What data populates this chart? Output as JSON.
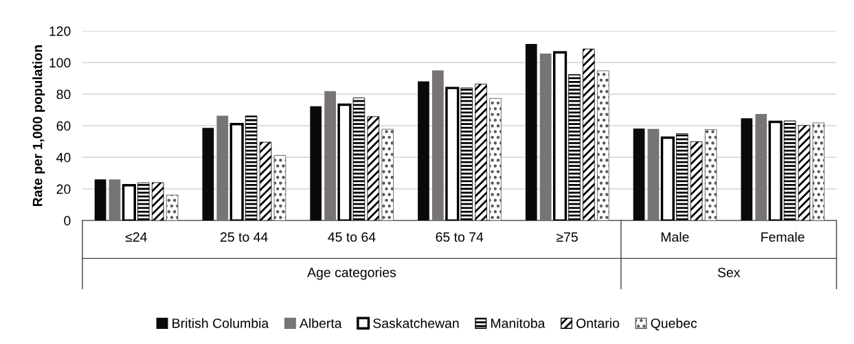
{
  "chart_data": {
    "type": "bar",
    "ylabel": "Rate per 1,000 population",
    "categories": [
      "≤24",
      "25 to 44",
      "45 to 64",
      "65 to 74",
      "≥75",
      "Male",
      "Female"
    ],
    "annotations": [
      "Age categories",
      "Sex"
    ],
    "series": [
      {
        "name": "British Columbia",
        "color": "#0a0a0a",
        "values": [
          26,
          58.6,
          72.3,
          88.1,
          111.8,
          58.2,
          64.7
        ]
      },
      {
        "name": "Alberta",
        "color": "#787374",
        "values": [
          26,
          66.4,
          81.9,
          95,
          105.7,
          58,
          67.4
        ]
      },
      {
        "name": "Saskatchewan",
        "color": "#ffffff",
        "values": [
          22.3,
          61,
          73.3,
          83.9,
          106.5,
          52.4,
          62.4
        ]
      },
      {
        "name": "Manitoba",
        "color": "#000000",
        "values": [
          23.9,
          66.2,
          77.6,
          84,
          92.4,
          55,
          63.1
        ]
      },
      {
        "name": "Ontario",
        "color": "#000000",
        "values": [
          24,
          49.6,
          65.8,
          86.4,
          108.6,
          49.9,
          60.2
        ]
      },
      {
        "name": "Quebec",
        "color": "#555555",
        "values": [
          16.1,
          41.2,
          57.8,
          77.3,
          94.8,
          57.6,
          61.8
        ]
      }
    ],
    "ylim": [
      0,
      120
    ],
    "yticks": [
      0,
      20,
      40,
      60,
      80,
      100,
      120
    ],
    "grid": "y",
    "legend": "bottom"
  }
}
